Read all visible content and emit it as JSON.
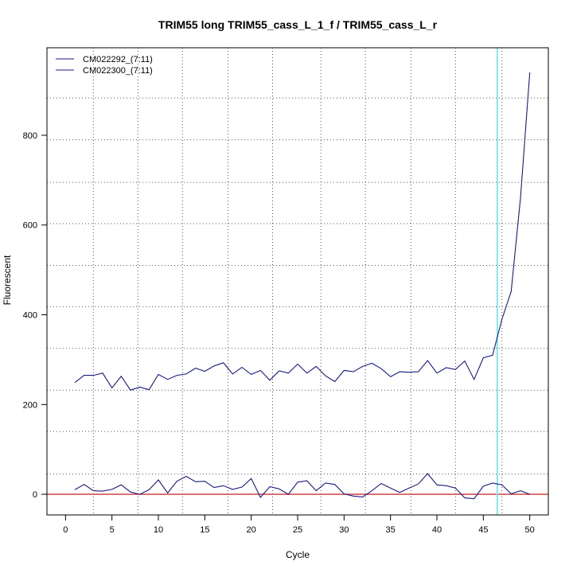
{
  "chart_data": {
    "type": "line",
    "title": "TRIM55 long TRIM55_cass_L_1_f / TRIM55_cass_L_r",
    "xlabel": "Cycle",
    "ylabel": "Fluorescent",
    "xlim": [
      -2,
      52
    ],
    "ylim": [
      -46,
      995
    ],
    "xticks": [
      0,
      5,
      10,
      15,
      20,
      25,
      30,
      35,
      40,
      45,
      50
    ],
    "xtick_labels": [
      "0",
      "5",
      "10",
      "15",
      "20",
      "25",
      "30",
      "35",
      "40",
      "45",
      "50"
    ],
    "yticks": [
      0,
      200,
      400,
      600,
      800
    ],
    "ytick_labels": [
      "0",
      "200",
      "400",
      "600",
      "800"
    ],
    "grid": true,
    "grid_x": [
      3,
      7.8,
      12.6,
      17.5,
      22.3,
      27.5,
      32.3,
      37.2,
      42,
      47
    ],
    "grid_y": [
      45,
      140,
      232,
      325,
      418,
      510,
      603,
      695,
      790,
      883
    ],
    "legend_position": "top-left",
    "threshold": 0,
    "threshold_color": "#cc3333",
    "cycle_marker": 46.5,
    "cycle_marker_color": "#7fe8f0",
    "line_color": "#1a1a80",
    "x": [
      1,
      2,
      3,
      4,
      5,
      6,
      7,
      8,
      9,
      10,
      11,
      12,
      13,
      14,
      15,
      16,
      17,
      18,
      19,
      20,
      21,
      22,
      23,
      24,
      25,
      26,
      27,
      28,
      29,
      30,
      31,
      32,
      33,
      34,
      35,
      36,
      37,
      38,
      39,
      40,
      41,
      42,
      43,
      44,
      45,
      46,
      47,
      48,
      49,
      50
    ],
    "series": [
      {
        "name": "CM022292_(7:11)",
        "values": [
          249,
          265,
          265,
          270,
          237,
          263,
          232,
          239,
          233,
          267,
          256,
          265,
          268,
          281,
          274,
          286,
          293,
          268,
          283,
          267,
          276,
          254,
          275,
          270,
          290,
          270,
          285,
          264,
          251,
          276,
          273,
          285,
          292,
          280,
          262,
          273,
          272,
          273,
          298,
          270,
          282,
          278,
          297,
          256,
          304,
          310,
          390,
          452,
          660,
          940
        ]
      },
      {
        "name": "CM022300_(7:11)",
        "values": [
          10,
          22,
          8,
          7,
          11,
          21,
          5,
          0,
          10,
          32,
          3,
          29,
          40,
          28,
          29,
          15,
          19,
          11,
          16,
          35,
          -7,
          17,
          12,
          0,
          27,
          30,
          8,
          25,
          22,
          1,
          -4,
          -6,
          8,
          24,
          14,
          4,
          14,
          23,
          46,
          21,
          19,
          14,
          -8,
          -10,
          18,
          25,
          21,
          1,
          8,
          0
        ]
      }
    ]
  }
}
